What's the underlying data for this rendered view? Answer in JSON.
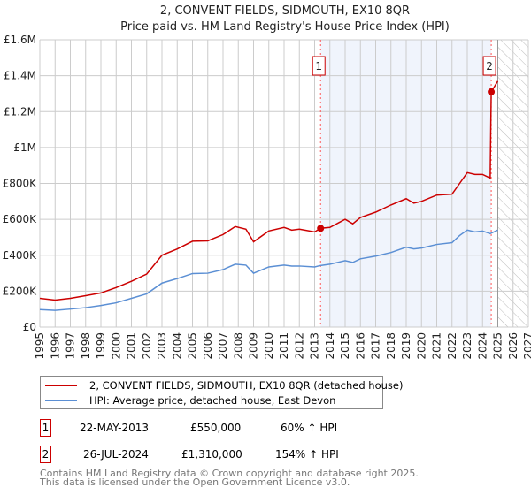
{
  "chart_data": {
    "type": "line",
    "title": "2, CONVENT FIELDS, SIDMOUTH, EX10 8QR",
    "subtitle": "Price paid vs. HM Land Registry's House Price Index (HPI)",
    "xlim": [
      1995,
      2027
    ],
    "ylim": [
      0,
      1600000
    ],
    "x_ticks": [
      "1995",
      "1996",
      "1997",
      "1998",
      "1999",
      "2000",
      "2001",
      "2002",
      "2003",
      "2004",
      "2005",
      "2006",
      "2007",
      "2008",
      "2009",
      "2010",
      "2011",
      "2012",
      "2013",
      "2014",
      "2015",
      "2016",
      "2017",
      "2018",
      "2019",
      "2020",
      "2021",
      "2022",
      "2023",
      "2024",
      "2025",
      "2026",
      "2027"
    ],
    "y_ticks": [
      {
        "v": 0,
        "label": "£0"
      },
      {
        "v": 200000,
        "label": "£200K"
      },
      {
        "v": 400000,
        "label": "£400K"
      },
      {
        "v": 600000,
        "label": "£600K"
      },
      {
        "v": 800000,
        "label": "£800K"
      },
      {
        "v": 1000000,
        "label": "£1M"
      },
      {
        "v": 1200000,
        "label": "£1.2M"
      },
      {
        "v": 1400000,
        "label": "£1.4M"
      },
      {
        "v": 1600000,
        "label": "£1.6M"
      }
    ],
    "grid": true,
    "shaded_range": [
      2013.39,
      2024.57
    ],
    "forecast_hatch_from": 2025,
    "series": [
      {
        "name": "2, CONVENT FIELDS, SIDMOUTH, EX10 8QR (detached house)",
        "color": "#cc0000",
        "x": [
          1995,
          1996,
          1997,
          1998,
          1999,
          2000,
          2001,
          2002,
          2003,
          2004,
          2005,
          2006,
          2007,
          2007.8,
          2008.5,
          2009,
          2010,
          2011,
          2011.5,
          2012,
          2013,
          2013.39,
          2014,
          2015,
          2015.5,
          2016,
          2017,
          2018,
          2019,
          2019.5,
          2020,
          2021,
          2022,
          2022.5,
          2023,
          2023.5,
          2024,
          2024.5,
          2024.57,
          2025
        ],
        "y": [
          160000,
          150000,
          160000,
          175000,
          190000,
          220000,
          255000,
          295000,
          400000,
          435000,
          478000,
          480000,
          515000,
          560000,
          545000,
          475000,
          535000,
          555000,
          540000,
          545000,
          530000,
          550000,
          555000,
          600000,
          575000,
          610000,
          640000,
          680000,
          715000,
          690000,
          700000,
          735000,
          740000,
          800000,
          860000,
          850000,
          850000,
          830000,
          1310000,
          1370000
        ]
      },
      {
        "name": "HPI: Average price, detached house, East Devon",
        "color": "#5b8fd4",
        "x": [
          1995,
          1996,
          1997,
          1998,
          1999,
          2000,
          2001,
          2002,
          2003,
          2004,
          2005,
          2006,
          2007,
          2007.8,
          2008.5,
          2009,
          2010,
          2011,
          2011.5,
          2012,
          2013,
          2013.39,
          2014,
          2015,
          2015.5,
          2016,
          2017,
          2018,
          2019,
          2019.5,
          2020,
          2021,
          2022,
          2022.5,
          2023,
          2023.5,
          2024,
          2024.5,
          2025
        ],
        "y": [
          97000,
          93000,
          100000,
          108000,
          120000,
          135000,
          160000,
          185000,
          245000,
          270000,
          298000,
          300000,
          320000,
          350000,
          345000,
          300000,
          335000,
          345000,
          340000,
          340000,
          335000,
          343000,
          350000,
          370000,
          360000,
          380000,
          395000,
          415000,
          445000,
          435000,
          440000,
          460000,
          470000,
          510000,
          540000,
          530000,
          535000,
          520000,
          540000
        ]
      }
    ],
    "annotations": [
      {
        "label": "1",
        "x": 2013.39,
        "y": 550000,
        "date": "22-MAY-2013",
        "price": "£550,000",
        "hpi": "60% ↑ HPI"
      },
      {
        "label": "2",
        "x": 2024.57,
        "y": 1310000,
        "date": "26-JUL-2024",
        "price": "£1,310,000",
        "hpi": "154% ↑ HPI"
      }
    ]
  },
  "footer": {
    "line1": "Contains HM Land Registry data © Crown copyright and database right 2025.",
    "line2": "This data is licensed under the Open Government Licence v3.0."
  }
}
